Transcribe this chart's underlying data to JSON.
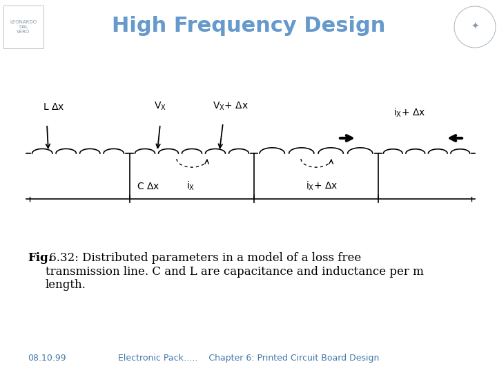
{
  "title": "High Frequency Design",
  "title_color": "#6699CC",
  "title_fontsize": 22,
  "title_fontstyle": "bold",
  "bg_color": "#ffffff",
  "fig_caption_bold": "Fig.",
  "fig_caption_rest": " 6.32: Distributed parameters in a model of a loss free\ntransmission line. C and L are capacitance and inductance per m\nlength.",
  "caption_fontsize": 12,
  "footer_left": "08.10.99",
  "footer_mid": "Electronic Pack…..    Chapter 6: Printed Circuit Board Design",
  "footer_fontsize": 9,
  "footer_color": "#4477AA",
  "line_color": "#000000"
}
